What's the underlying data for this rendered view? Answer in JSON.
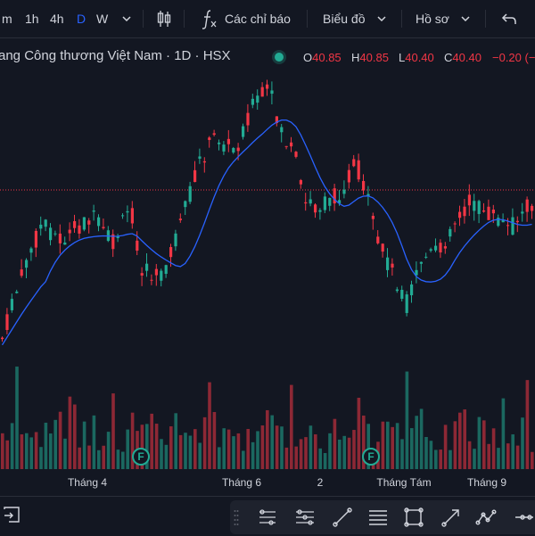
{
  "toolbar": {
    "intervals": [
      "m",
      "1h",
      "4h",
      "D",
      "W"
    ],
    "active_interval": "D",
    "indicators_label": "Các chỉ báo",
    "layout_label": "Biểu đồ",
    "profile_label": "Hồ sơ"
  },
  "legend": {
    "title": "ang Công thương Việt Nam · 1D · HSX",
    "open_key": "O",
    "open": "40.85",
    "high_key": "H",
    "high": "40.85",
    "low_key": "L",
    "low": "40.40",
    "close_key": "C",
    "close": "40.40",
    "change": "−0.20 (−"
  },
  "xaxis": {
    "labels": [
      "Tháng 4",
      "Tháng 6",
      "2",
      "Tháng Tám",
      "Tháng 9"
    ]
  },
  "events": {
    "badge_label": "F"
  },
  "colors": {
    "up": "#22ab94",
    "down": "#f23645",
    "ma": "#2962ff",
    "price_line": "#f23645",
    "background": "#131722"
  },
  "icons": {
    "toolbar": [
      "chevron-down-icon",
      "candles-icon",
      "function-icon",
      "undo-icon"
    ],
    "drawing": [
      "trend-line-icon",
      "horizontal-lines-icon",
      "pitchfork-icon",
      "line-icon",
      "text-lines-icon",
      "rectangle-icon",
      "arrow-icon",
      "path-icon",
      "measure-icon"
    ]
  }
}
